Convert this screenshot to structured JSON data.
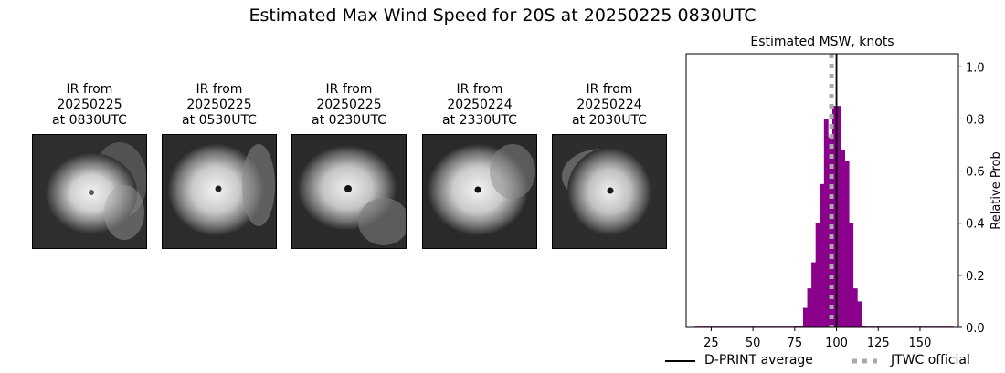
{
  "title": "Estimated Max Wind Speed for 20S at 20250225 0830UTC",
  "panels": [
    {
      "l1": "IR from",
      "l2": "20250225",
      "l3": "at 0830UTC"
    },
    {
      "l1": "IR from",
      "l2": "20250225",
      "l3": "at 0530UTC"
    },
    {
      "l1": "IR from",
      "l2": "20250225",
      "l3": "at 0230UTC"
    },
    {
      "l1": "IR from",
      "l2": "20250224",
      "l3": "at 2330UTC"
    },
    {
      "l1": "IR from",
      "l2": "20250224",
      "l3": "at 2030UTC"
    }
  ],
  "colors": {
    "bar": "#8B008B",
    "dprint_line": "#000000",
    "jtwc_line": "#a9a9a9"
  },
  "chart_data": {
    "type": "bar",
    "title": "Estimated MSW, knots",
    "xlabel": "",
    "ylabel": "Relative Prob",
    "y_axis_side": "right",
    "xlim": [
      10,
      173
    ],
    "ylim": [
      0,
      1.05
    ],
    "xticks": [
      25,
      50,
      75,
      100,
      125,
      150
    ],
    "yticks": [
      0.0,
      0.2,
      0.4,
      0.6,
      0.8,
      1.0
    ],
    "bin_width": 2.5,
    "bins": [
      {
        "x": 15,
        "value": 0.003
      },
      {
        "x": 17.5,
        "value": 0.003
      },
      {
        "x": 20,
        "value": 0.003
      },
      {
        "x": 22.5,
        "value": 0.003
      },
      {
        "x": 25,
        "value": 0.003
      },
      {
        "x": 27.5,
        "value": 0.003
      },
      {
        "x": 30,
        "value": 0.003
      },
      {
        "x": 32.5,
        "value": 0.003
      },
      {
        "x": 35,
        "value": 0.003
      },
      {
        "x": 37.5,
        "value": 0.003
      },
      {
        "x": 40,
        "value": 0.003
      },
      {
        "x": 42.5,
        "value": 0.003
      },
      {
        "x": 45,
        "value": 0.003
      },
      {
        "x": 47.5,
        "value": 0.003
      },
      {
        "x": 50,
        "value": 0.003
      },
      {
        "x": 52.5,
        "value": 0.003
      },
      {
        "x": 55,
        "value": 0.003
      },
      {
        "x": 57.5,
        "value": 0.003
      },
      {
        "x": 60,
        "value": 0.003
      },
      {
        "x": 62.5,
        "value": 0.003
      },
      {
        "x": 65,
        "value": 0.003
      },
      {
        "x": 67.5,
        "value": 0.003
      },
      {
        "x": 70,
        "value": 0.003
      },
      {
        "x": 72.5,
        "value": 0.003
      },
      {
        "x": 75,
        "value": 0.005
      },
      {
        "x": 77.5,
        "value": 0.005
      },
      {
        "x": 80,
        "value": 0.075
      },
      {
        "x": 82.5,
        "value": 0.15
      },
      {
        "x": 85,
        "value": 0.25
      },
      {
        "x": 87.5,
        "value": 0.4
      },
      {
        "x": 90,
        "value": 0.55
      },
      {
        "x": 92.5,
        "value": 0.8
      },
      {
        "x": 95,
        "value": 0.73
      },
      {
        "x": 97.5,
        "value": 0.85
      },
      {
        "x": 100,
        "value": 0.85
      },
      {
        "x": 102.5,
        "value": 0.68
      },
      {
        "x": 105,
        "value": 0.64
      },
      {
        "x": 107.5,
        "value": 0.4
      },
      {
        "x": 110,
        "value": 0.15
      },
      {
        "x": 112.5,
        "value": 0.1
      },
      {
        "x": 115,
        "value": 0.005
      },
      {
        "x": 117.5,
        "value": 0.003
      },
      {
        "x": 120,
        "value": 0.003
      },
      {
        "x": 122.5,
        "value": 0.003
      },
      {
        "x": 125,
        "value": 0.003
      },
      {
        "x": 127.5,
        "value": 0.003
      },
      {
        "x": 130,
        "value": 0.003
      },
      {
        "x": 132.5,
        "value": 0.003
      },
      {
        "x": 135,
        "value": 0.003
      },
      {
        "x": 137.5,
        "value": 0.003
      },
      {
        "x": 140,
        "value": 0.003
      },
      {
        "x": 142.5,
        "value": 0.003
      },
      {
        "x": 145,
        "value": 0.003
      },
      {
        "x": 147.5,
        "value": 0.003
      },
      {
        "x": 150,
        "value": 0.003
      },
      {
        "x": 152.5,
        "value": 0.003
      },
      {
        "x": 155,
        "value": 0.003
      },
      {
        "x": 157.5,
        "value": 0.003
      },
      {
        "x": 160,
        "value": 0.003
      },
      {
        "x": 162.5,
        "value": 0.003
      },
      {
        "x": 165,
        "value": 0.003
      },
      {
        "x": 167.5,
        "value": 0.003
      }
    ],
    "vlines": [
      {
        "name": "D-PRINT average",
        "x": 100,
        "style": "solid"
      },
      {
        "name": "JTWC official",
        "x": 97,
        "style": "dotted"
      }
    ],
    "legend": [
      "D-PRINT average",
      "JTWC official"
    ],
    "legend_position": "bottom"
  }
}
